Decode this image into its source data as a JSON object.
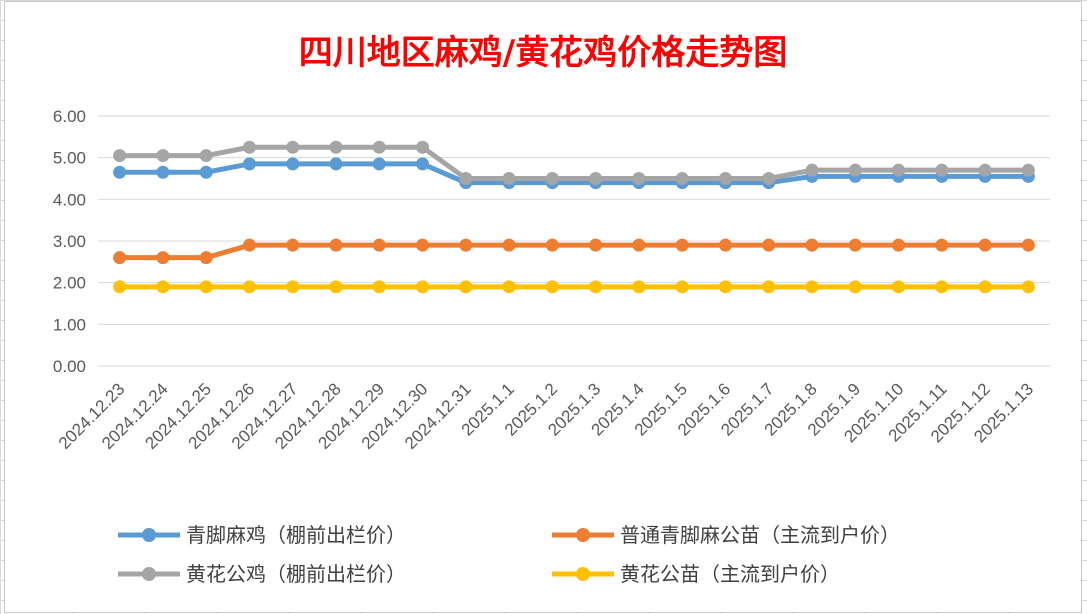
{
  "chart_data": {
    "type": "line",
    "title": "四川地区麻鸡/黄花鸡价格走势图",
    "xlabel": "",
    "ylabel": "",
    "ylim": [
      0,
      6
    ],
    "y_ticks": [
      "0.00",
      "1.00",
      "2.00",
      "3.00",
      "4.00",
      "5.00",
      "6.00"
    ],
    "grid": true,
    "legend_position": "bottom",
    "categories": [
      "2024.12.23",
      "2024.12.24",
      "2024.12.25",
      "2024.12.26",
      "2024.12.27",
      "2024.12.28",
      "2024.12.29",
      "2024.12.30",
      "2024.12.31",
      "2025.1.1",
      "2025.1.2",
      "2025.1.3",
      "2025.1.4",
      "2025.1.5",
      "2025.1.6",
      "2025.1.7",
      "2025.1.8",
      "2025.1.9",
      "2025.1.10",
      "2025.1.11",
      "2025.1.12",
      "2025.1.13"
    ],
    "series": [
      {
        "name": "青脚麻鸡（棚前出栏价）",
        "color": "#5b9bd5",
        "values": [
          4.65,
          4.65,
          4.65,
          4.85,
          4.85,
          4.85,
          4.85,
          4.85,
          4.4,
          4.4,
          4.4,
          4.4,
          4.4,
          4.4,
          4.4,
          4.4,
          4.55,
          4.55,
          4.55,
          4.55,
          4.55,
          4.55
        ]
      },
      {
        "name": "普通青脚麻公苗（主流到户价）",
        "color": "#ed7d31",
        "values": [
          2.6,
          2.6,
          2.6,
          2.9,
          2.9,
          2.9,
          2.9,
          2.9,
          2.9,
          2.9,
          2.9,
          2.9,
          2.9,
          2.9,
          2.9,
          2.9,
          2.9,
          2.9,
          2.9,
          2.9,
          2.9,
          2.9
        ]
      },
      {
        "name": "黄花公鸡（棚前出栏价）",
        "color": "#a5a5a5",
        "values": [
          5.05,
          5.05,
          5.05,
          5.25,
          5.25,
          5.25,
          5.25,
          5.25,
          4.5,
          4.5,
          4.5,
          4.5,
          4.5,
          4.5,
          4.5,
          4.5,
          4.7,
          4.7,
          4.7,
          4.7,
          4.7,
          4.7
        ]
      },
      {
        "name": "黄花公苗（主流到户价）",
        "color": "#ffc000",
        "values": [
          1.9,
          1.9,
          1.9,
          1.9,
          1.9,
          1.9,
          1.9,
          1.9,
          1.9,
          1.9,
          1.9,
          1.9,
          1.9,
          1.9,
          1.9,
          1.9,
          1.9,
          1.9,
          1.9,
          1.9,
          1.9,
          1.9
        ]
      }
    ],
    "draw_order": [
      0,
      1,
      3,
      2
    ],
    "legend": [
      {
        "series": 0,
        "col": 0,
        "row": 0
      },
      {
        "series": 1,
        "col": 1,
        "row": 0
      },
      {
        "series": 2,
        "col": 0,
        "row": 1
      },
      {
        "series": 3,
        "col": 1,
        "row": 1
      }
    ]
  }
}
